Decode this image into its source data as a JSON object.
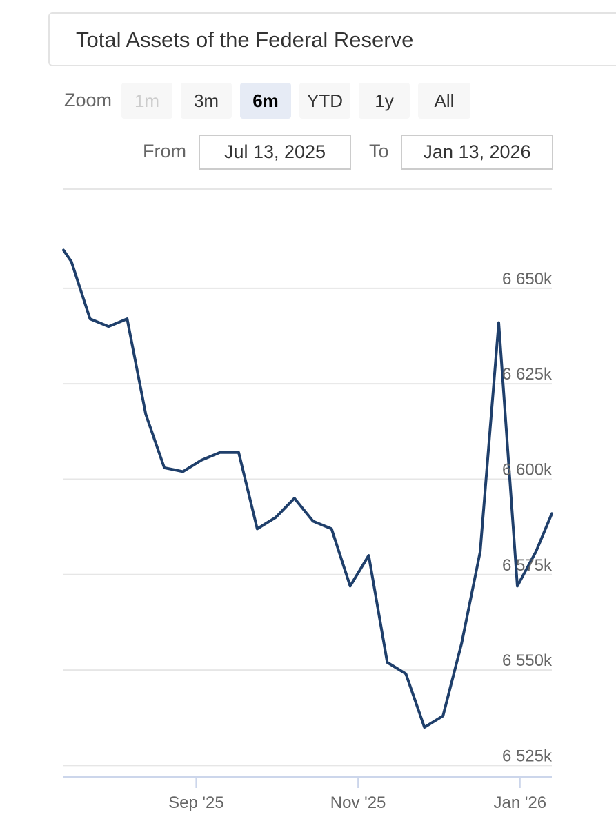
{
  "title": "Total Assets of the Federal Reserve",
  "zoom": {
    "label": "Zoom",
    "buttons": [
      {
        "label": "1m",
        "state": "disabled"
      },
      {
        "label": "3m",
        "state": "normal"
      },
      {
        "label": "6m",
        "state": "selected"
      },
      {
        "label": "YTD",
        "state": "normal"
      },
      {
        "label": "1y",
        "state": "normal"
      },
      {
        "label": "All",
        "state": "normal"
      }
    ]
  },
  "range": {
    "from_label": "From",
    "from_value": "Jul 13, 2025",
    "to_label": "To",
    "to_value": "Jan 13, 2026"
  },
  "colors": {
    "line": "#1f3f6b",
    "grid": "#e6e6e6",
    "axis": "#ccd6eb"
  },
  "chart_data": {
    "type": "line",
    "title": "Total Assets of the Federal Reserve",
    "xlabel": "",
    "ylabel": "",
    "grid": true,
    "y_tick_values": [
      6525,
      6550,
      6575,
      6600,
      6625,
      6650
    ],
    "y_tick_labels": [
      "6 525k",
      "6 550k",
      "6 575k",
      "6 600k",
      "6 625k",
      "6 650k"
    ],
    "x_tick_values": [
      "2025-09-01",
      "2025-11-01",
      "2026-01-01"
    ],
    "x_tick_labels": [
      "Sep '25",
      "Nov '25",
      "Jan '26"
    ],
    "xlim": [
      "2025-07-13",
      "2026-01-13"
    ],
    "ylim": [
      6522,
      6676
    ],
    "series": [
      {
        "name": "",
        "x": [
          "2025-07-13",
          "2025-07-16",
          "2025-07-23",
          "2025-07-30",
          "2025-08-06",
          "2025-08-13",
          "2025-08-20",
          "2025-08-27",
          "2025-09-03",
          "2025-09-10",
          "2025-09-17",
          "2025-09-24",
          "2025-10-01",
          "2025-10-08",
          "2025-10-15",
          "2025-10-22",
          "2025-10-29",
          "2025-11-05",
          "2025-11-12",
          "2025-11-19",
          "2025-11-26",
          "2025-12-03",
          "2025-12-10",
          "2025-12-17",
          "2025-12-24",
          "2025-12-31",
          "2026-01-07",
          "2026-01-13"
        ],
        "y": [
          6660,
          6657,
          6642,
          6640,
          6642,
          6617,
          6603,
          6602,
          6605,
          6607,
          6607,
          6587,
          6590,
          6595,
          6589,
          6587,
          6572,
          6580,
          6552,
          6549,
          6535,
          6538,
          6557,
          6581,
          6641,
          6572,
          6581,
          6591
        ]
      }
    ]
  }
}
